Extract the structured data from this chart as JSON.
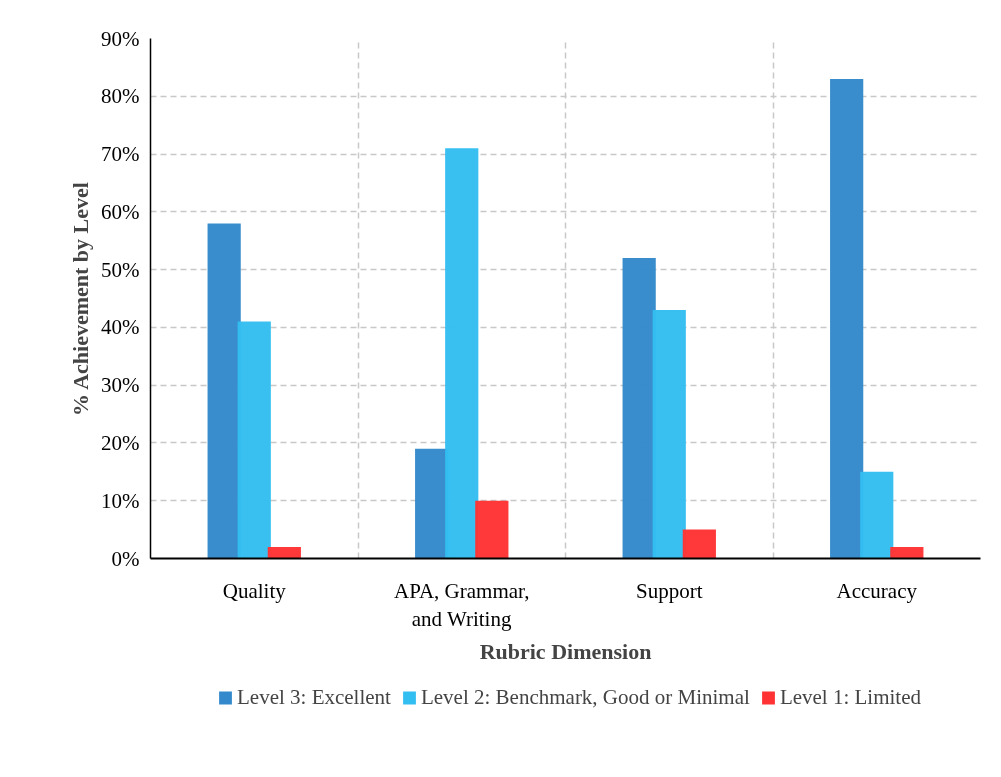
{
  "chart_data": {
    "type": "bar",
    "xlabel": "Rubric Dimension",
    "ylabel": "% Achievement by Level",
    "categories": [
      "Quality",
      "APA, Grammar, and Writing",
      "Support",
      "Accuracy"
    ],
    "series": [
      {
        "name": "Level 3: Excellent",
        "color": "#3389cb",
        "values": [
          58,
          19,
          52,
          83
        ]
      },
      {
        "name": "Level 2: Benchmark, Good or Minimal",
        "color": "#33bef1",
        "values": [
          41,
          71,
          43,
          15
        ]
      },
      {
        "name": "Level 1: Limited",
        "color": "#ff3333",
        "values": [
          2,
          10,
          5,
          2
        ]
      }
    ],
    "ylim": [
      0,
      90
    ],
    "yticks": [
      {
        "value": 0,
        "label": "0%"
      },
      {
        "value": 10,
        "label": "10%"
      },
      {
        "value": 20,
        "label": "20%"
      },
      {
        "value": 30,
        "label": "30%"
      },
      {
        "value": 40,
        "label": "40%"
      },
      {
        "value": 50,
        "label": "50%"
      },
      {
        "value": 60,
        "label": "60%"
      },
      {
        "value": 70,
        "label": "70%"
      },
      {
        "value": 80,
        "label": "80%"
      },
      {
        "value": 90,
        "label": "90%"
      }
    ],
    "grid": true,
    "legend": "bottom"
  }
}
